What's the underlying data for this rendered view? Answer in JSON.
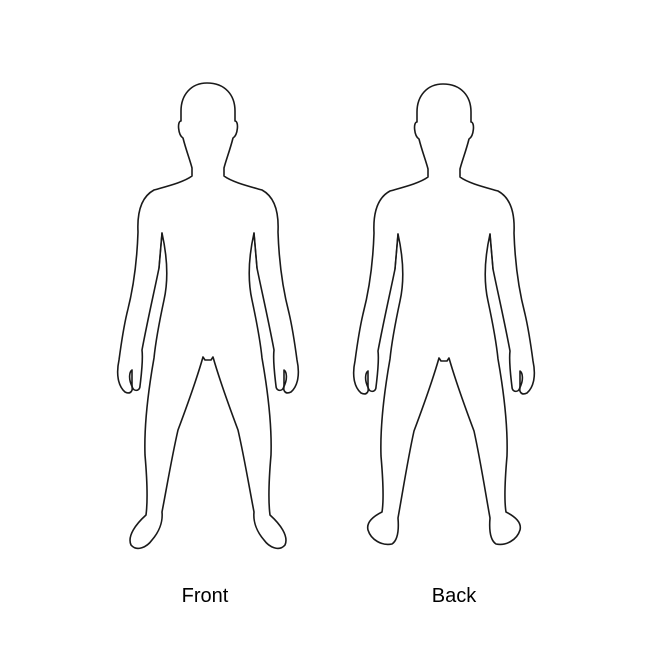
{
  "views": {
    "front": {
      "label": "Front"
    },
    "back": {
      "label": "Back"
    }
  },
  "colors": {
    "outline": "#1a1a1a",
    "background": "#ffffff"
  }
}
